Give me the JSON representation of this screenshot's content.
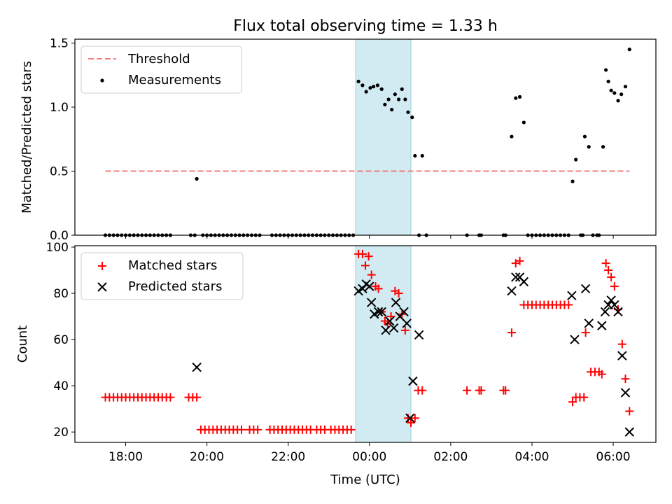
{
  "chart_data": [
    {
      "type": "scatter",
      "title": "Flux total observing time = 1.33 h",
      "xlabel": "",
      "ylabel": "Matched/Predicted stars",
      "ylim": [
        0,
        1.53
      ],
      "yticks": [
        0.0,
        0.5,
        1.0,
        1.5
      ],
      "ytick_labels": [
        "0.0",
        "0.5",
        "1.0",
        "1.5"
      ],
      "legend_location": "upper-left",
      "shaded_region": {
        "x": [
          23.66,
          25.02
        ],
        "color": "#add8e6"
      },
      "threshold": {
        "name": "Threshold",
        "y": 0.5,
        "x": [
          17.5,
          30.4
        ],
        "color": "#f08080"
      },
      "series": [
        {
          "name": "Measurements",
          "marker": "dot",
          "color": "#000000",
          "points": [
            [
              17.5,
              0
            ],
            [
              17.6,
              0
            ],
            [
              17.7,
              0
            ],
            [
              17.8,
              0
            ],
            [
              17.9,
              0
            ],
            [
              18.0,
              0
            ],
            [
              18.1,
              0
            ],
            [
              18.2,
              0
            ],
            [
              18.3,
              0
            ],
            [
              18.4,
              0
            ],
            [
              18.5,
              0
            ],
            [
              18.6,
              0
            ],
            [
              18.7,
              0
            ],
            [
              18.8,
              0
            ],
            [
              18.9,
              0
            ],
            [
              19.0,
              0
            ],
            [
              19.1,
              0
            ],
            [
              19.6,
              0
            ],
            [
              19.7,
              0
            ],
            [
              19.75,
              0.44
            ],
            [
              19.9,
              0
            ],
            [
              20.0,
              0
            ],
            [
              20.1,
              0
            ],
            [
              20.2,
              0
            ],
            [
              20.3,
              0
            ],
            [
              20.4,
              0
            ],
            [
              20.5,
              0
            ],
            [
              20.6,
              0
            ],
            [
              20.7,
              0
            ],
            [
              20.8,
              0
            ],
            [
              20.9,
              0
            ],
            [
              21.0,
              0
            ],
            [
              21.1,
              0
            ],
            [
              21.2,
              0
            ],
            [
              21.3,
              0
            ],
            [
              21.6,
              0
            ],
            [
              21.7,
              0
            ],
            [
              21.8,
              0
            ],
            [
              21.9,
              0
            ],
            [
              22.0,
              0
            ],
            [
              22.1,
              0
            ],
            [
              22.2,
              0
            ],
            [
              22.3,
              0
            ],
            [
              22.4,
              0
            ],
            [
              22.5,
              0
            ],
            [
              22.6,
              0
            ],
            [
              22.7,
              0
            ],
            [
              22.8,
              0
            ],
            [
              22.9,
              0
            ],
            [
              23.0,
              0
            ],
            [
              23.1,
              0
            ],
            [
              23.2,
              0
            ],
            [
              23.3,
              0
            ],
            [
              23.4,
              0
            ],
            [
              23.5,
              0
            ],
            [
              23.6,
              0
            ],
            [
              23.73,
              1.2
            ],
            [
              23.83,
              1.17
            ],
            [
              23.92,
              1.12
            ],
            [
              24.02,
              1.15
            ],
            [
              24.1,
              1.16
            ],
            [
              24.2,
              1.17
            ],
            [
              24.3,
              1.14
            ],
            [
              24.38,
              1.02
            ],
            [
              24.47,
              1.06
            ],
            [
              24.55,
              0.98
            ],
            [
              24.63,
              1.1
            ],
            [
              24.72,
              1.06
            ],
            [
              24.8,
              1.14
            ],
            [
              24.88,
              1.06
            ],
            [
              24.95,
              0.96
            ],
            [
              25.05,
              0.92
            ],
            [
              25.12,
              0.62
            ],
            [
              25.22,
              0
            ],
            [
              25.3,
              0.62
            ],
            [
              25.4,
              0
            ],
            [
              26.4,
              0
            ],
            [
              26.7,
              0
            ],
            [
              26.75,
              0
            ],
            [
              27.3,
              0
            ],
            [
              27.35,
              0
            ],
            [
              27.5,
              0.77
            ],
            [
              27.6,
              1.07
            ],
            [
              27.7,
              1.08
            ],
            [
              27.8,
              0.88
            ],
            [
              27.9,
              0
            ],
            [
              28.0,
              0
            ],
            [
              28.1,
              0
            ],
            [
              28.2,
              0
            ],
            [
              28.3,
              0
            ],
            [
              28.4,
              0
            ],
            [
              28.5,
              0
            ],
            [
              28.6,
              0
            ],
            [
              28.7,
              0
            ],
            [
              28.8,
              0
            ],
            [
              28.9,
              0
            ],
            [
              29.0,
              0.42
            ],
            [
              29.08,
              0.59
            ],
            [
              29.2,
              0
            ],
            [
              29.25,
              0
            ],
            [
              29.3,
              0.77
            ],
            [
              29.4,
              0.69
            ],
            [
              29.5,
              0
            ],
            [
              29.6,
              0
            ],
            [
              29.65,
              0
            ],
            [
              29.75,
              0.69
            ],
            [
              29.82,
              1.29
            ],
            [
              29.88,
              1.2
            ],
            [
              29.95,
              1.13
            ],
            [
              30.03,
              1.11
            ],
            [
              30.12,
              1.05
            ],
            [
              30.2,
              1.1
            ],
            [
              30.3,
              1.16
            ],
            [
              30.4,
              1.45
            ]
          ]
        }
      ]
    },
    {
      "type": "scatter",
      "title": "",
      "xlabel": "Time (UTC)",
      "ylabel": "Count",
      "xlim": [
        16.75,
        31.05
      ],
      "ylim": [
        15.5,
        100.6
      ],
      "yticks": [
        20,
        40,
        60,
        80,
        100
      ],
      "ytick_labels": [
        "20",
        "40",
        "60",
        "80",
        "100"
      ],
      "xticks": [
        18,
        20,
        22,
        24,
        26,
        28,
        30
      ],
      "xtick_labels": [
        "18:00",
        "20:00",
        "22:00",
        "00:00",
        "02:00",
        "04:00",
        "06:00"
      ],
      "legend_location": "upper-left",
      "shaded_region": {
        "x": [
          23.66,
          25.02
        ],
        "color": "#add8e6"
      },
      "series": [
        {
          "name": "Matched stars",
          "marker": "plus",
          "color": "#ff0000",
          "points": [
            [
              17.5,
              35
            ],
            [
              17.6,
              35
            ],
            [
              17.7,
              35
            ],
            [
              17.8,
              35
            ],
            [
              17.9,
              35
            ],
            [
              18.0,
              35
            ],
            [
              18.1,
              35
            ],
            [
              18.2,
              35
            ],
            [
              18.3,
              35
            ],
            [
              18.4,
              35
            ],
            [
              18.5,
              35
            ],
            [
              18.6,
              35
            ],
            [
              18.7,
              35
            ],
            [
              18.8,
              35
            ],
            [
              18.9,
              35
            ],
            [
              19.0,
              35
            ],
            [
              19.1,
              35
            ],
            [
              19.55,
              35
            ],
            [
              19.65,
              35
            ],
            [
              19.75,
              35
            ],
            [
              19.85,
              21
            ],
            [
              19.95,
              21
            ],
            [
              20.05,
              21
            ],
            [
              20.15,
              21
            ],
            [
              20.25,
              21
            ],
            [
              20.35,
              21
            ],
            [
              20.45,
              21
            ],
            [
              20.55,
              21
            ],
            [
              20.65,
              21
            ],
            [
              20.75,
              21
            ],
            [
              20.85,
              21
            ],
            [
              21.05,
              21
            ],
            [
              21.15,
              21
            ],
            [
              21.25,
              21
            ],
            [
              21.55,
              21
            ],
            [
              21.65,
              21
            ],
            [
              21.75,
              21
            ],
            [
              21.85,
              21
            ],
            [
              21.95,
              21
            ],
            [
              22.05,
              21
            ],
            [
              22.15,
              21
            ],
            [
              22.25,
              21
            ],
            [
              22.35,
              21
            ],
            [
              22.45,
              21
            ],
            [
              22.55,
              21
            ],
            [
              22.7,
              21
            ],
            [
              22.8,
              21
            ],
            [
              22.9,
              21
            ],
            [
              23.05,
              21
            ],
            [
              23.15,
              21
            ],
            [
              23.25,
              21
            ],
            [
              23.35,
              21
            ],
            [
              23.45,
              21
            ],
            [
              23.55,
              21
            ],
            [
              23.73,
              97
            ],
            [
              23.83,
              97
            ],
            [
              23.9,
              92
            ],
            [
              23.98,
              96
            ],
            [
              24.05,
              88
            ],
            [
              24.15,
              83
            ],
            [
              24.22,
              82
            ],
            [
              24.3,
              72
            ],
            [
              24.38,
              68
            ],
            [
              24.45,
              67
            ],
            [
              24.53,
              70
            ],
            [
              24.63,
              81
            ],
            [
              24.72,
              80
            ],
            [
              24.8,
              71
            ],
            [
              24.88,
              64
            ],
            [
              24.95,
              26
            ],
            [
              25.02,
              24
            ],
            [
              25.12,
              26
            ],
            [
              25.2,
              38
            ],
            [
              25.3,
              38
            ],
            [
              26.4,
              38
            ],
            [
              26.7,
              38
            ],
            [
              26.75,
              38
            ],
            [
              27.3,
              38
            ],
            [
              27.35,
              38
            ],
            [
              27.5,
              63
            ],
            [
              27.6,
              93
            ],
            [
              27.7,
              94
            ],
            [
              27.8,
              75
            ],
            [
              27.9,
              75
            ],
            [
              28.0,
              75
            ],
            [
              28.1,
              75
            ],
            [
              28.2,
              75
            ],
            [
              28.3,
              75
            ],
            [
              28.4,
              75
            ],
            [
              28.5,
              75
            ],
            [
              28.6,
              75
            ],
            [
              28.7,
              75
            ],
            [
              28.8,
              75
            ],
            [
              28.9,
              75
            ],
            [
              29.0,
              33
            ],
            [
              29.08,
              35
            ],
            [
              29.18,
              35
            ],
            [
              29.28,
              35
            ],
            [
              29.32,
              63
            ],
            [
              29.45,
              46
            ],
            [
              29.55,
              46
            ],
            [
              29.65,
              46
            ],
            [
              29.72,
              45
            ],
            [
              29.82,
              93
            ],
            [
              29.88,
              90
            ],
            [
              29.95,
              87
            ],
            [
              30.03,
              83
            ],
            [
              30.12,
              73
            ],
            [
              30.22,
              58
            ],
            [
              30.3,
              43
            ],
            [
              30.4,
              29
            ]
          ]
        },
        {
          "name": "Predicted stars",
          "marker": "x",
          "color": "#000000",
          "points": [
            [
              19.75,
              48
            ],
            [
              23.73,
              81
            ],
            [
              23.83,
              82
            ],
            [
              23.92,
              84
            ],
            [
              24.0,
              83
            ],
            [
              24.05,
              76
            ],
            [
              24.12,
              71
            ],
            [
              24.22,
              72
            ],
            [
              24.3,
              72
            ],
            [
              24.4,
              64
            ],
            [
              24.5,
              68
            ],
            [
              24.6,
              65
            ],
            [
              24.65,
              76
            ],
            [
              24.75,
              70
            ],
            [
              24.85,
              72
            ],
            [
              24.92,
              67
            ],
            [
              25.0,
              26
            ],
            [
              25.07,
              42
            ],
            [
              25.22,
              62
            ],
            [
              27.5,
              81
            ],
            [
              27.6,
              87
            ],
            [
              27.7,
              87
            ],
            [
              27.8,
              85
            ],
            [
              28.98,
              79
            ],
            [
              29.05,
              60
            ],
            [
              29.32,
              82
            ],
            [
              29.4,
              67
            ],
            [
              29.72,
              66
            ],
            [
              29.8,
              72
            ],
            [
              29.88,
              75
            ],
            [
              29.95,
              77
            ],
            [
              30.03,
              75
            ],
            [
              30.12,
              72
            ],
            [
              30.22,
              53
            ],
            [
              30.3,
              37
            ],
            [
              30.4,
              20
            ]
          ]
        }
      ]
    }
  ]
}
